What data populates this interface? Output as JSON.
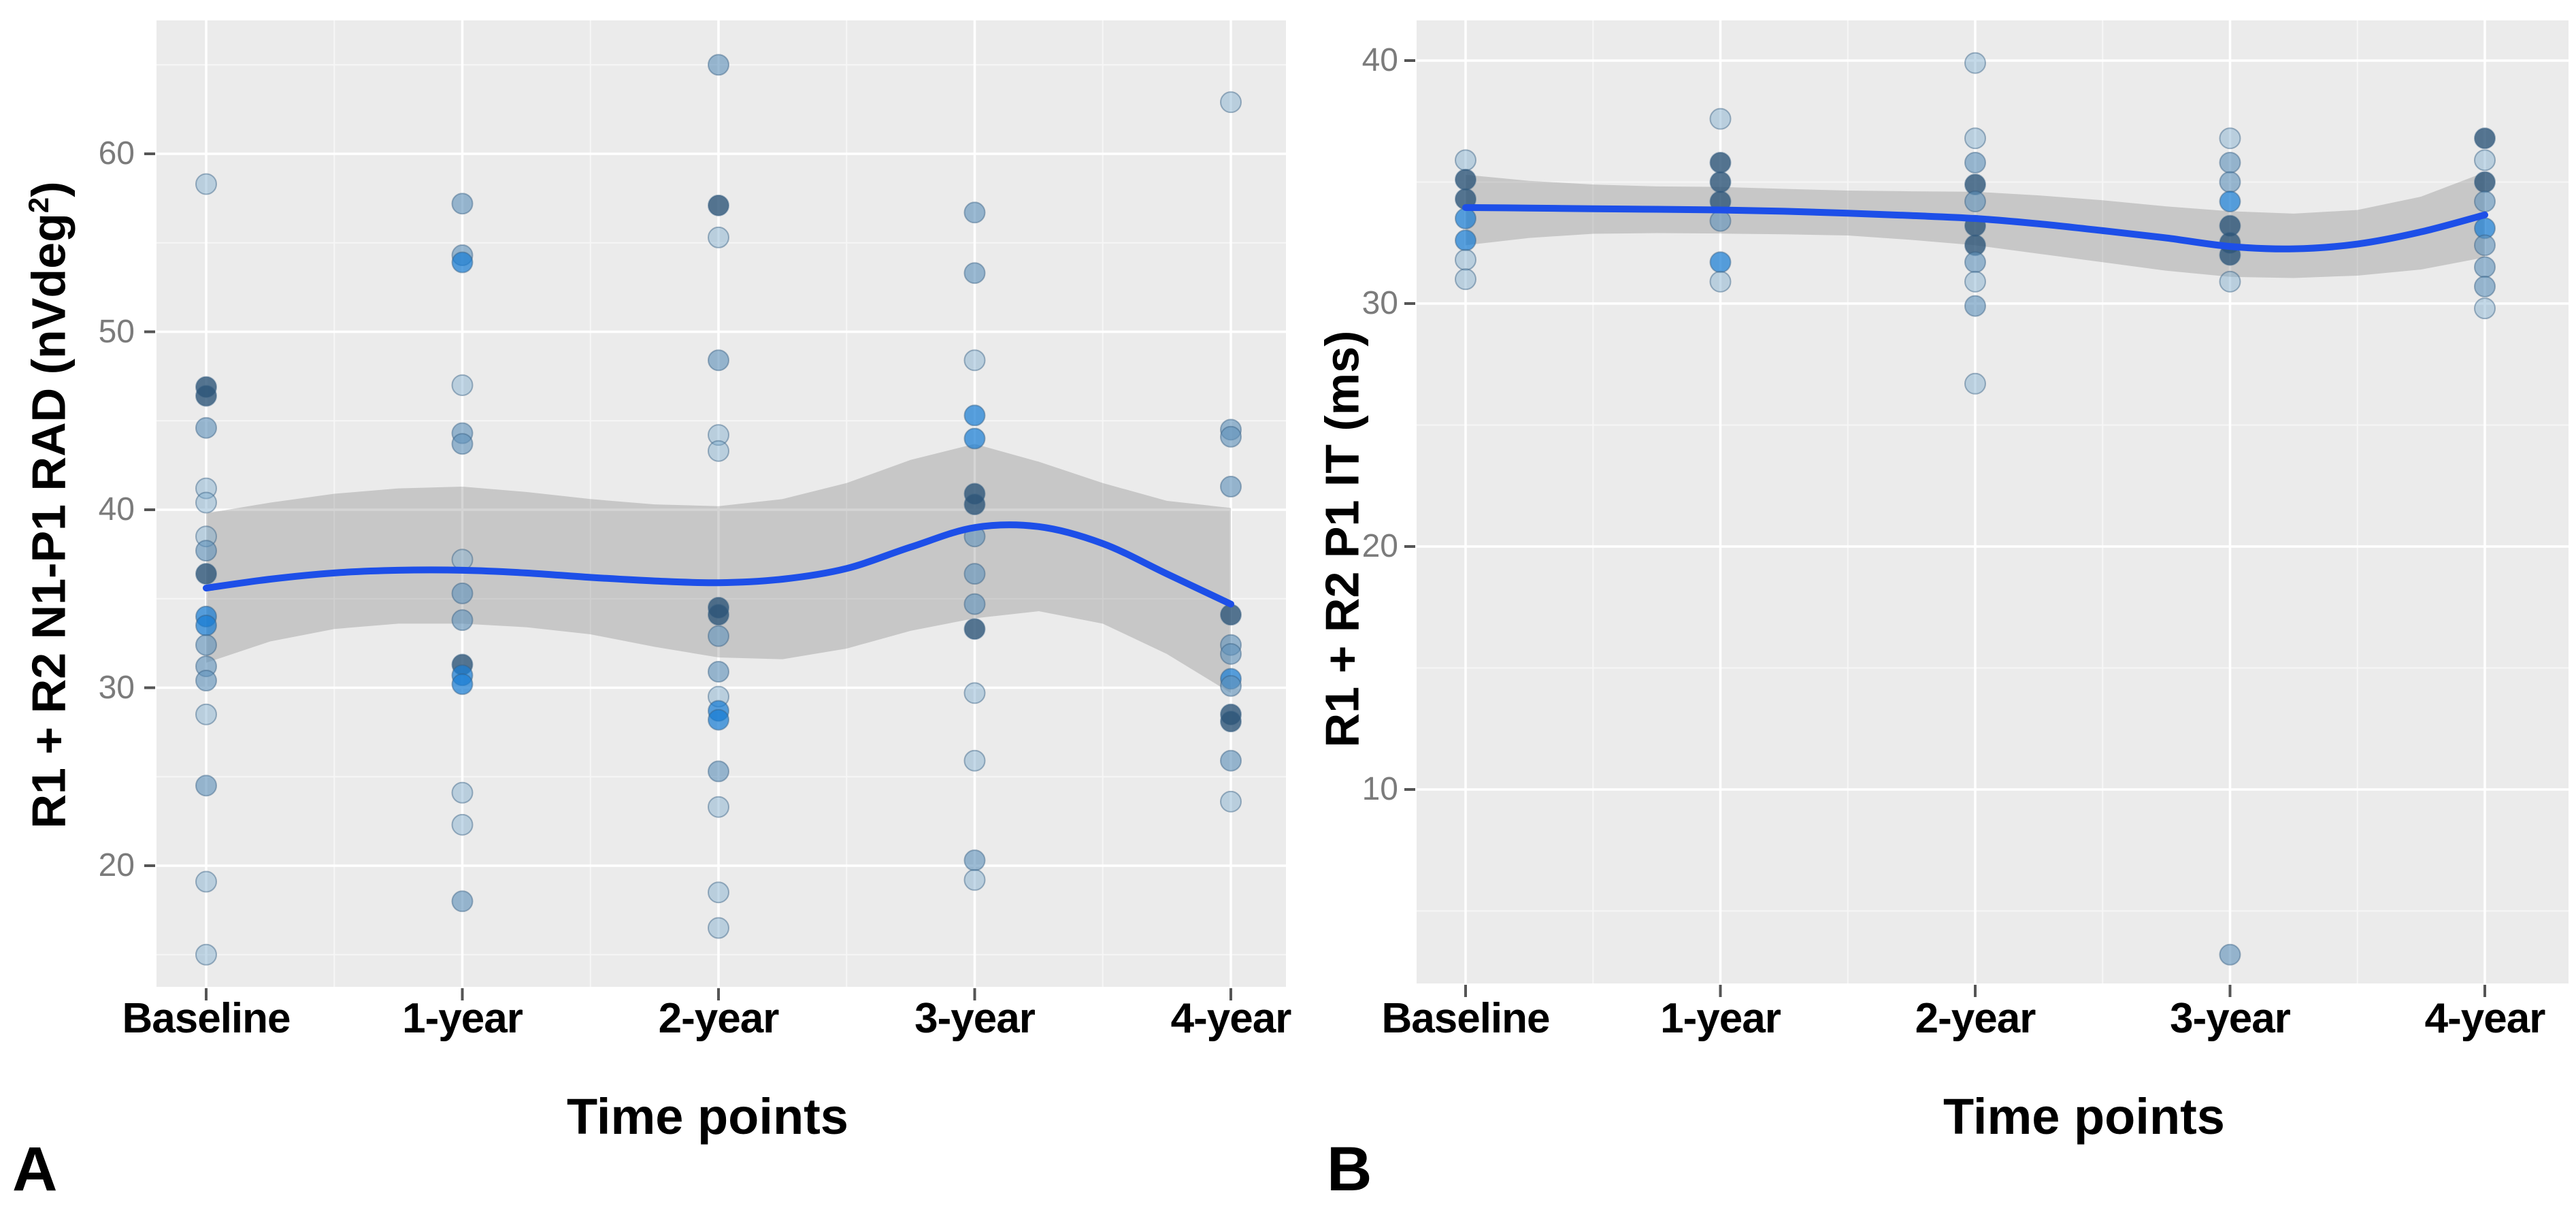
{
  "figure": {
    "panel_a_letter": "A",
    "panel_b_letter": "B"
  },
  "colors": {
    "panel_background": "#ebebeb",
    "grid_major": "#ffffff",
    "grid_minor": "#f6f6f6",
    "smooth_line": "#1d4fe8",
    "confidence_band": "rgba(125,125,125,0.32)",
    "tick_mark": "#555555",
    "tick_text": "#7b7b7b",
    "point_shades": [
      "rgba(125,170,205,0.45)",
      "rgba(95,145,185,0.62)",
      "rgba(45,85,120,0.80)",
      "rgba(25,125,210,0.72)"
    ],
    "point_stroke": "rgba(55,95,130,0.45)"
  },
  "chart_data": [
    {
      "type": "scatter",
      "panel": "A",
      "ylabel_prefix": "R1 + R2 N1-P1 RAD (nVdeg",
      "ylabel_sup": "2",
      "ylabel_suffix": ")",
      "xlabel": "Time points",
      "categories": [
        "Baseline",
        "1-year",
        "2-year",
        "3-year",
        "4-year"
      ],
      "y_ticks": [
        60,
        50,
        40,
        30,
        20
      ],
      "y_minor_ticks": [
        65,
        55,
        45,
        35,
        25,
        15
      ],
      "ylim": [
        12.9,
        67.5
      ],
      "grid": true,
      "legend": "none",
      "points": [
        [
          0,
          58.3,
          0
        ],
        [
          0,
          46.9,
          2
        ],
        [
          0,
          46.4,
          2
        ],
        [
          0,
          44.6,
          1
        ],
        [
          0,
          41.2,
          0
        ],
        [
          0,
          40.4,
          0
        ],
        [
          0,
          38.5,
          0
        ],
        [
          0,
          37.7,
          1
        ],
        [
          0,
          36.4,
          2
        ],
        [
          0,
          34.0,
          3
        ],
        [
          0,
          33.5,
          3
        ],
        [
          0,
          32.4,
          1
        ],
        [
          0,
          31.2,
          1
        ],
        [
          0,
          30.4,
          1
        ],
        [
          0,
          28.5,
          0
        ],
        [
          0,
          24.5,
          1
        ],
        [
          0,
          19.1,
          0
        ],
        [
          0,
          15.0,
          0
        ],
        [
          1,
          57.2,
          1
        ],
        [
          1,
          54.3,
          1
        ],
        [
          1,
          53.9,
          3
        ],
        [
          1,
          47.0,
          0
        ],
        [
          1,
          44.3,
          1
        ],
        [
          1,
          43.7,
          1
        ],
        [
          1,
          37.2,
          0
        ],
        [
          1,
          35.3,
          1
        ],
        [
          1,
          33.8,
          1
        ],
        [
          1,
          31.3,
          2
        ],
        [
          1,
          30.7,
          3
        ],
        [
          1,
          30.2,
          3
        ],
        [
          1,
          24.1,
          0
        ],
        [
          1,
          22.3,
          0
        ],
        [
          1,
          18.0,
          1
        ],
        [
          2,
          65.0,
          1
        ],
        [
          2,
          57.1,
          2
        ],
        [
          2,
          55.3,
          0
        ],
        [
          2,
          48.4,
          1
        ],
        [
          2,
          44.2,
          0
        ],
        [
          2,
          43.3,
          0
        ],
        [
          2,
          34.5,
          2
        ],
        [
          2,
          34.1,
          2
        ],
        [
          2,
          32.9,
          1
        ],
        [
          2,
          30.9,
          1
        ],
        [
          2,
          29.5,
          0
        ],
        [
          2,
          28.7,
          3
        ],
        [
          2,
          28.2,
          3
        ],
        [
          2,
          25.3,
          1
        ],
        [
          2,
          23.3,
          0
        ],
        [
          2,
          18.5,
          0
        ],
        [
          2,
          16.5,
          0
        ],
        [
          3,
          56.7,
          1
        ],
        [
          3,
          53.3,
          1
        ],
        [
          3,
          48.4,
          0
        ],
        [
          3,
          45.3,
          3
        ],
        [
          3,
          44.0,
          3
        ],
        [
          3,
          40.9,
          2
        ],
        [
          3,
          40.3,
          2
        ],
        [
          3,
          38.5,
          1
        ],
        [
          3,
          36.4,
          1
        ],
        [
          3,
          34.7,
          1
        ],
        [
          3,
          33.3,
          2
        ],
        [
          3,
          29.7,
          0
        ],
        [
          3,
          25.9,
          0
        ],
        [
          3,
          20.3,
          1
        ],
        [
          3,
          19.2,
          0
        ],
        [
          4,
          62.9,
          0
        ],
        [
          4,
          44.5,
          1
        ],
        [
          4,
          44.1,
          1
        ],
        [
          4,
          41.3,
          1
        ],
        [
          4,
          34.1,
          2
        ],
        [
          4,
          32.4,
          1
        ],
        [
          4,
          31.9,
          1
        ],
        [
          4,
          30.5,
          3
        ],
        [
          4,
          30.1,
          1
        ],
        [
          4,
          28.5,
          2
        ],
        [
          4,
          28.1,
          2
        ],
        [
          4,
          25.9,
          1
        ],
        [
          4,
          23.6,
          0
        ]
      ],
      "smooth_line": {
        "x": [
          0,
          0.25,
          0.5,
          0.75,
          1,
          1.25,
          1.5,
          1.75,
          2,
          2.25,
          2.5,
          2.75,
          3,
          3.25,
          3.5,
          3.75,
          4
        ],
        "y": [
          35.6,
          36.1,
          36.45,
          36.6,
          36.6,
          36.45,
          36.2,
          36.0,
          35.9,
          36.1,
          36.7,
          37.9,
          39.0,
          39.05,
          38.1,
          36.4,
          34.7
        ]
      },
      "band": {
        "x": [
          0,
          0.25,
          0.5,
          0.75,
          1,
          1.25,
          1.5,
          1.75,
          2,
          2.25,
          2.5,
          2.75,
          3,
          3.25,
          3.5,
          3.75,
          4
        ],
        "upper": [
          39.8,
          40.4,
          40.9,
          41.2,
          41.3,
          41.0,
          40.6,
          40.3,
          40.2,
          40.6,
          41.5,
          42.8,
          43.7,
          42.7,
          41.5,
          40.5,
          40.1
        ],
        "lower": [
          31.4,
          32.6,
          33.3,
          33.6,
          33.6,
          33.4,
          33.0,
          32.3,
          31.7,
          31.6,
          32.2,
          33.2,
          33.9,
          34.3,
          33.6,
          31.9,
          29.7
        ]
      }
    },
    {
      "type": "scatter",
      "panel": "B",
      "ylabel_prefix": "R1 + R2 P1 IT (ms",
      "ylabel_sup": "",
      "ylabel_suffix": ")",
      "xlabel": "Time points",
      "categories": [
        "Baseline",
        "1-year",
        "2-year",
        "3-year",
        "4-year"
      ],
      "y_ticks": [
        40,
        30,
        20,
        10
      ],
      "y_minor_ticks": [
        35,
        25,
        15,
        5
      ],
      "ylim": [
        2.0,
        41.6
      ],
      "grid": true,
      "legend": "none",
      "points": [
        [
          0,
          35.9,
          0
        ],
        [
          0,
          35.1,
          2
        ],
        [
          0,
          34.3,
          2
        ],
        [
          0,
          33.5,
          3
        ],
        [
          0,
          32.6,
          3
        ],
        [
          0,
          31.8,
          0
        ],
        [
          0,
          31.0,
          0
        ],
        [
          1,
          37.6,
          0
        ],
        [
          1,
          35.8,
          2
        ],
        [
          1,
          35.0,
          2
        ],
        [
          1,
          34.2,
          2
        ],
        [
          1,
          33.4,
          1
        ],
        [
          1,
          31.7,
          3
        ],
        [
          1,
          30.9,
          0
        ],
        [
          2,
          39.9,
          0
        ],
        [
          2,
          36.8,
          0
        ],
        [
          2,
          35.8,
          1
        ],
        [
          2,
          34.9,
          2
        ],
        [
          2,
          34.2,
          1
        ],
        [
          2,
          33.2,
          2
        ],
        [
          2,
          32.4,
          2
        ],
        [
          2,
          31.7,
          1
        ],
        [
          2,
          30.9,
          0
        ],
        [
          2,
          29.9,
          1
        ],
        [
          2,
          26.7,
          0
        ],
        [
          3,
          36.8,
          0
        ],
        [
          3,
          35.8,
          1
        ],
        [
          3,
          35.0,
          1
        ],
        [
          3,
          34.2,
          3
        ],
        [
          3,
          33.2,
          2
        ],
        [
          3,
          32.5,
          2
        ],
        [
          3,
          32.0,
          2
        ],
        [
          3,
          30.9,
          0
        ],
        [
          3,
          3.2,
          1
        ],
        [
          4,
          36.8,
          2
        ],
        [
          4,
          35.9,
          0
        ],
        [
          4,
          35.0,
          2
        ],
        [
          4,
          34.2,
          1
        ],
        [
          4,
          33.1,
          3
        ],
        [
          4,
          32.4,
          1
        ],
        [
          4,
          31.5,
          1
        ],
        [
          4,
          30.7,
          1
        ],
        [
          4,
          29.8,
          0
        ]
      ],
      "smooth_line": {
        "x": [
          0,
          0.25,
          0.5,
          0.75,
          1,
          1.25,
          1.5,
          1.75,
          2,
          2.25,
          2.5,
          2.75,
          3,
          3.25,
          3.5,
          3.75,
          4
        ],
        "y": [
          33.95,
          33.93,
          33.9,
          33.88,
          33.85,
          33.8,
          33.72,
          33.62,
          33.5,
          33.28,
          33.0,
          32.7,
          32.35,
          32.25,
          32.45,
          32.95,
          33.65
        ]
      },
      "band": {
        "x": [
          0,
          0.25,
          0.5,
          0.75,
          1,
          1.25,
          1.5,
          1.75,
          2,
          2.25,
          2.5,
          2.75,
          3,
          3.25,
          3.5,
          3.75,
          4
        ],
        "upper": [
          35.3,
          35.05,
          34.9,
          34.82,
          34.8,
          34.72,
          34.65,
          34.62,
          34.6,
          34.45,
          34.25,
          34.0,
          33.8,
          33.7,
          33.85,
          34.4,
          35.4
        ],
        "lower": [
          32.4,
          32.7,
          32.87,
          32.9,
          32.88,
          32.85,
          32.8,
          32.62,
          32.4,
          32.05,
          31.7,
          31.35,
          31.1,
          31.05,
          31.15,
          31.4,
          31.9
        ]
      }
    }
  ]
}
